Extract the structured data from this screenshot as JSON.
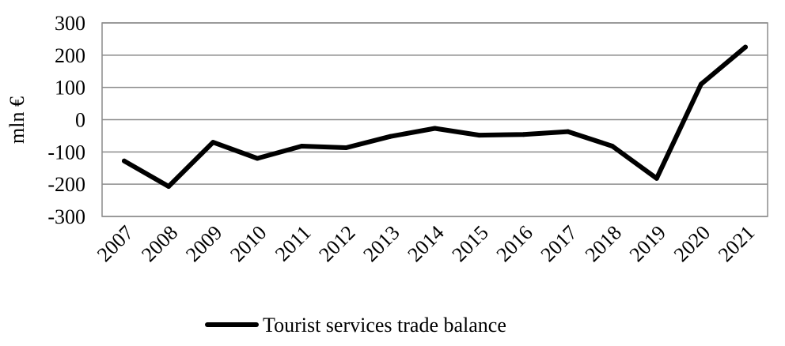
{
  "chart_data": {
    "type": "line",
    "title": "",
    "xlabel": "",
    "ylabel": "mln €",
    "ylim": [
      -300,
      300
    ],
    "yticks": [
      300,
      200,
      100,
      0,
      -100,
      -200,
      -300
    ],
    "ytick_labels": [
      "300",
      "200",
      "100",
      "0",
      "-100",
      "-200",
      "-300"
    ],
    "grid": true,
    "legend": "bottom",
    "categories": [
      "2007",
      "2008",
      "2009",
      "2010",
      "2011",
      "2012",
      "2013",
      "2014",
      "2015",
      "2016",
      "2017",
      "2018",
      "2019",
      "2020",
      "2021"
    ],
    "series": [
      {
        "name": "Tourist services trade balance",
        "color": "#000000",
        "values": [
          -128,
          -207,
          -70,
          -120,
          -82,
          -87,
          -52,
          -27,
          -48,
          -46,
          -37,
          -82,
          -182,
          110,
          225
        ]
      }
    ]
  }
}
